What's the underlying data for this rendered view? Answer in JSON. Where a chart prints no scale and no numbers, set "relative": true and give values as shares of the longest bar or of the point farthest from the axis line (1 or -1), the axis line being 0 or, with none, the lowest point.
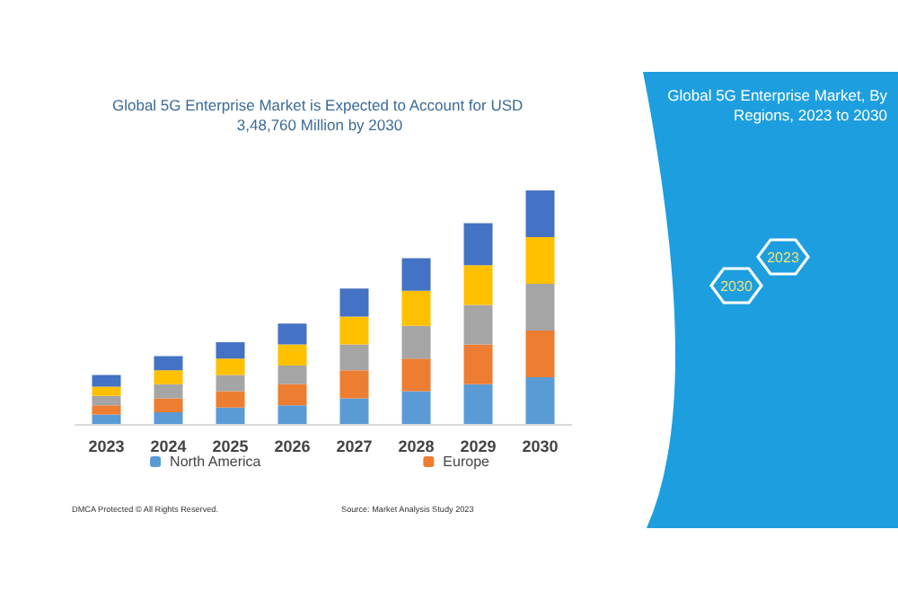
{
  "chart_data": {
    "type": "bar",
    "stacked": true,
    "relative": true,
    "title": "Global 5G Enterprise Market is Expected to Account for USD 3,48,760 Million by 2030",
    "subtitle": "Global 5G Enterprise Market, By Regions, 2023 to 2030",
    "categories": [
      "2023",
      "2024",
      "2025",
      "2026",
      "2027",
      "2028",
      "2029",
      "2030"
    ],
    "series": [
      {
        "name": "North America",
        "color": "#5b9bd5",
        "values": [
          0.04,
          0.05,
          0.07,
          0.08,
          0.11,
          0.14,
          0.17,
          0.2
        ]
      },
      {
        "name": "Europe",
        "color": "#ed7d31",
        "values": [
          0.04,
          0.06,
          0.07,
          0.09,
          0.12,
          0.14,
          0.17,
          0.2
        ]
      },
      {
        "color": "#a5a5a5",
        "values": [
          0.04,
          0.06,
          0.07,
          0.08,
          0.11,
          0.14,
          0.17,
          0.2
        ]
      },
      {
        "color": "#ffc000",
        "values": [
          0.04,
          0.06,
          0.07,
          0.09,
          0.12,
          0.15,
          0.17,
          0.2
        ]
      },
      {
        "color": "#4472c4",
        "values": [
          0.05,
          0.06,
          0.07,
          0.09,
          0.12,
          0.14,
          0.18,
          0.2
        ]
      }
    ],
    "legend": "bottom",
    "annotations": [
      "2030",
      "2023",
      "DMCA Protected © All Rights Reserved.",
      "Source: Market Analysis Study 2023"
    ]
  }
}
